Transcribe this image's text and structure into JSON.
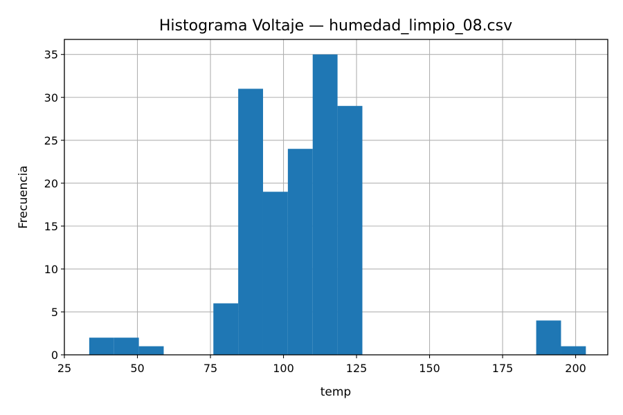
{
  "chart_data": {
    "type": "bar",
    "title": "Histograma Voltaje — humedad_limpio_08.csv",
    "xlabel": "temp",
    "ylabel": "Frecuencia",
    "xlim": [
      25,
      211
    ],
    "ylim": [
      0,
      36.75
    ],
    "xticks": [
      25,
      50,
      75,
      100,
      125,
      150,
      175,
      200
    ],
    "yticks": [
      0,
      5,
      10,
      15,
      20,
      25,
      30,
      35
    ],
    "grid": true,
    "bar_color": "#1f77b4",
    "bins": [
      {
        "x0": 33.5,
        "x1": 42.0,
        "value": 2
      },
      {
        "x0": 42.0,
        "x1": 50.5,
        "value": 2
      },
      {
        "x0": 50.5,
        "x1": 59.0,
        "value": 1
      },
      {
        "x0": 59.0,
        "x1": 67.5,
        "value": 0
      },
      {
        "x0": 67.5,
        "x1": 76.0,
        "value": 0
      },
      {
        "x0": 76.0,
        "x1": 84.5,
        "value": 6
      },
      {
        "x0": 84.5,
        "x1": 93.0,
        "value": 31
      },
      {
        "x0": 93.0,
        "x1": 101.5,
        "value": 19
      },
      {
        "x0": 101.5,
        "x1": 110.0,
        "value": 24
      },
      {
        "x0": 110.0,
        "x1": 118.5,
        "value": 35
      },
      {
        "x0": 118.5,
        "x1": 127.0,
        "value": 29
      },
      {
        "x0": 127.0,
        "x1": 135.5,
        "value": 0
      },
      {
        "x0": 135.5,
        "x1": 144.0,
        "value": 0
      },
      {
        "x0": 144.0,
        "x1": 152.5,
        "value": 0
      },
      {
        "x0": 152.5,
        "x1": 161.0,
        "value": 0
      },
      {
        "x0": 161.0,
        "x1": 169.5,
        "value": 0
      },
      {
        "x0": 169.5,
        "x1": 178.0,
        "value": 0
      },
      {
        "x0": 178.0,
        "x1": 186.5,
        "value": 0
      },
      {
        "x0": 186.5,
        "x1": 195.0,
        "value": 4
      },
      {
        "x0": 195.0,
        "x1": 203.5,
        "value": 1
      }
    ]
  }
}
